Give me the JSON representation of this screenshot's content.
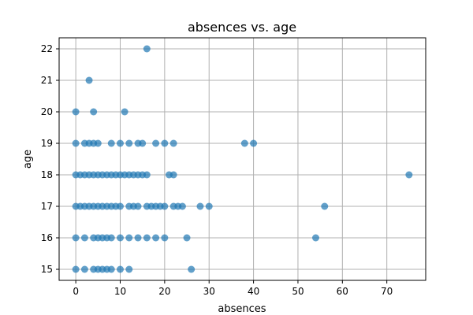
{
  "chart_data": {
    "type": "scatter",
    "title": "absences vs. age",
    "xlabel": "absences",
    "ylabel": "age",
    "xlim": [
      -3.75,
      78.75
    ],
    "ylim": [
      14.65,
      22.35
    ],
    "xticks": [
      0,
      10,
      20,
      30,
      40,
      50,
      60,
      70
    ],
    "yticks": [
      15,
      16,
      17,
      18,
      19,
      20,
      21,
      22
    ],
    "grid": true,
    "marker_color": "#1f77b4",
    "marker_alpha": 0.7,
    "points": [
      [
        16,
        22
      ],
      [
        3,
        21
      ],
      [
        0,
        20
      ],
      [
        4,
        20
      ],
      [
        11,
        20
      ],
      [
        0,
        19
      ],
      [
        2,
        19
      ],
      [
        3,
        19
      ],
      [
        4,
        19
      ],
      [
        5,
        19
      ],
      [
        8,
        19
      ],
      [
        10,
        19
      ],
      [
        12,
        19
      ],
      [
        14,
        19
      ],
      [
        15,
        19
      ],
      [
        18,
        19
      ],
      [
        20,
        19
      ],
      [
        22,
        19
      ],
      [
        38,
        19
      ],
      [
        40,
        19
      ],
      [
        0,
        18
      ],
      [
        1,
        18
      ],
      [
        2,
        18
      ],
      [
        3,
        18
      ],
      [
        4,
        18
      ],
      [
        5,
        18
      ],
      [
        6,
        18
      ],
      [
        7,
        18
      ],
      [
        8,
        18
      ],
      [
        9,
        18
      ],
      [
        10,
        18
      ],
      [
        11,
        18
      ],
      [
        12,
        18
      ],
      [
        13,
        18
      ],
      [
        14,
        18
      ],
      [
        15,
        18
      ],
      [
        16,
        18
      ],
      [
        21,
        18
      ],
      [
        22,
        18
      ],
      [
        75,
        18
      ],
      [
        0,
        17
      ],
      [
        1,
        17
      ],
      [
        2,
        17
      ],
      [
        3,
        17
      ],
      [
        4,
        17
      ],
      [
        5,
        17
      ],
      [
        6,
        17
      ],
      [
        7,
        17
      ],
      [
        8,
        17
      ],
      [
        9,
        17
      ],
      [
        10,
        17
      ],
      [
        12,
        17
      ],
      [
        13,
        17
      ],
      [
        14,
        17
      ],
      [
        16,
        17
      ],
      [
        17,
        17
      ],
      [
        18,
        17
      ],
      [
        19,
        17
      ],
      [
        20,
        17
      ],
      [
        22,
        17
      ],
      [
        23,
        17
      ],
      [
        24,
        17
      ],
      [
        28,
        17
      ],
      [
        30,
        17
      ],
      [
        56,
        17
      ],
      [
        0,
        16
      ],
      [
        2,
        16
      ],
      [
        4,
        16
      ],
      [
        5,
        16
      ],
      [
        6,
        16
      ],
      [
        7,
        16
      ],
      [
        8,
        16
      ],
      [
        10,
        16
      ],
      [
        12,
        16
      ],
      [
        14,
        16
      ],
      [
        16,
        16
      ],
      [
        18,
        16
      ],
      [
        20,
        16
      ],
      [
        25,
        16
      ],
      [
        54,
        16
      ],
      [
        0,
        15
      ],
      [
        2,
        15
      ],
      [
        4,
        15
      ],
      [
        5,
        15
      ],
      [
        6,
        15
      ],
      [
        7,
        15
      ],
      [
        8,
        15
      ],
      [
        10,
        15
      ],
      [
        12,
        15
      ],
      [
        26,
        15
      ]
    ]
  }
}
